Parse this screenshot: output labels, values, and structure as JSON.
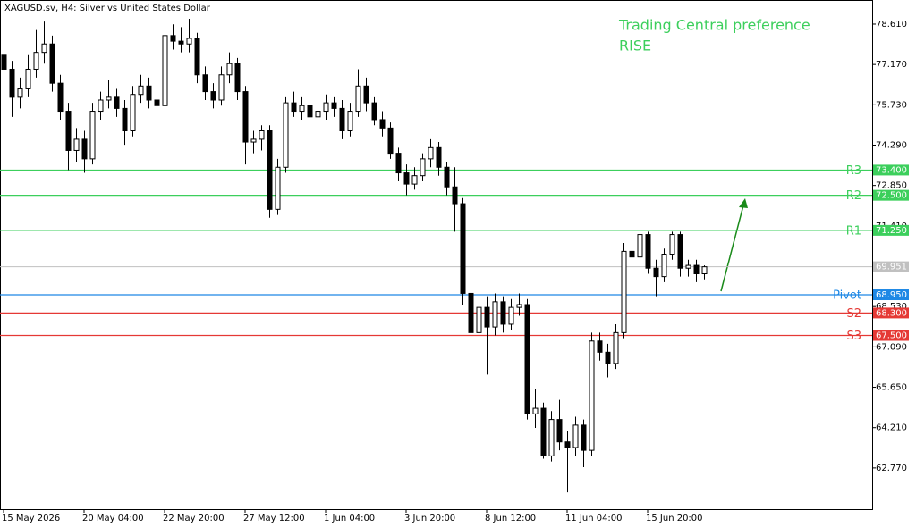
{
  "chart_data": {
    "type": "candlestick",
    "title": "XAGUSD.sv, H4:  Silver vs United States Dollar",
    "annotations": [
      "Trading Central preference",
      "RISE"
    ],
    "annotation_color": "#3ccf5c",
    "categories": [
      "15 May 2026",
      null,
      null,
      null,
      null,
      null,
      null,
      null,
      null,
      null,
      "20 May 04:00",
      null,
      null,
      null,
      null,
      null,
      null,
      null,
      null,
      null,
      "22 May 20:00",
      null,
      null,
      null,
      null,
      null,
      null,
      null,
      null,
      null,
      "27 May 12:00",
      null,
      null,
      null,
      null,
      null,
      null,
      null,
      null,
      null,
      "1 Jun 04:00",
      null,
      null,
      null,
      null,
      null,
      null,
      null,
      null,
      null,
      "3 Jun 20:00",
      null,
      null,
      null,
      null,
      null,
      null,
      null,
      null,
      null,
      "8 Jun 12:00",
      null,
      null,
      null,
      null,
      null,
      null,
      null,
      null,
      null,
      "11 Jun 04:00",
      null,
      null,
      null,
      null,
      null,
      null,
      null,
      null,
      null,
      "15 Jun 20:00",
      null,
      null,
      null,
      null,
      null,
      null,
      null
    ],
    "open": [
      77.5,
      77.0,
      76.0,
      76.3,
      77.0,
      77.6,
      77.9,
      76.5,
      75.5,
      74.1,
      74.5,
      73.8,
      75.5,
      75.9,
      76.0,
      75.6,
      74.8,
      76.1,
      76.4,
      75.9,
      75.7,
      78.2,
      78.0,
      77.9,
      78.1,
      76.8,
      76.2,
      75.9,
      76.8,
      77.2,
      76.2,
      74.4,
      74.5,
      74.8,
      72.0,
      73.5,
      75.8,
      75.5,
      75.7,
      75.3,
      75.5,
      75.8,
      75.6,
      74.8,
      75.5,
      76.4,
      75.8,
      75.2,
      74.9,
      74.0,
      73.3,
      72.9,
      73.2,
      73.8,
      74.2,
      73.5,
      72.8,
      72.2,
      69.0,
      67.6,
      68.5,
      67.8,
      68.7,
      67.9,
      68.5,
      68.6,
      64.7,
      64.9,
      63.2,
      64.5,
      63.7,
      63.5,
      64.3,
      63.4,
      67.3,
      66.9,
      66.5,
      67.6,
      70.5,
      70.3,
      71.1,
      69.9,
      69.6,
      70.4,
      71.1,
      69.9,
      70.0,
      69.7
    ],
    "high": [
      78.2,
      77.3,
      76.7,
      77.5,
      78.4,
      78.7,
      78.2,
      76.8,
      75.8,
      74.9,
      74.8,
      75.8,
      76.2,
      76.6,
      76.3,
      75.9,
      76.4,
      76.8,
      76.7,
      76.2,
      78.9,
      78.6,
      78.5,
      78.8,
      78.3,
      77.1,
      76.5,
      77.1,
      77.6,
      77.4,
      76.4,
      74.8,
      75.0,
      75.0,
      73.8,
      76.0,
      76.2,
      76.0,
      76.4,
      75.7,
      76.1,
      76.0,
      75.9,
      75.8,
      77.0,
      76.7,
      76.0,
      75.5,
      75.1,
      74.2,
      73.6,
      73.5,
      74.0,
      74.5,
      74.4,
      73.7,
      73.5,
      72.4,
      69.3,
      68.8,
      68.9,
      69.0,
      68.9,
      68.8,
      69.0,
      68.8,
      65.6,
      65.1,
      64.8,
      65.2,
      64.1,
      64.6,
      64.5,
      67.6,
      67.6,
      67.2,
      67.9,
      70.8,
      70.9,
      71.2,
      71.2,
      70.2,
      70.6,
      71.2,
      71.2,
      70.2,
      70.2,
      70.0
    ],
    "low": [
      76.8,
      75.3,
      75.6,
      76.0,
      76.7,
      77.2,
      76.2,
      75.2,
      73.4,
      73.7,
      73.3,
      73.6,
      75.2,
      75.6,
      75.3,
      74.3,
      74.6,
      75.8,
      75.6,
      75.4,
      75.5,
      77.7,
      77.6,
      77.6,
      76.5,
      75.9,
      75.6,
      75.7,
      76.5,
      75.9,
      73.6,
      74.0,
      74.1,
      71.7,
      71.8,
      73.3,
      75.3,
      75.2,
      75.0,
      73.5,
      75.2,
      75.3,
      74.5,
      74.6,
      75.3,
      75.5,
      75.0,
      74.6,
      73.8,
      73.0,
      72.5,
      72.7,
      73.0,
      73.5,
      73.2,
      72.5,
      71.2,
      68.6,
      67.0,
      66.5,
      66.1,
      67.5,
      67.6,
      67.7,
      68.2,
      64.5,
      64.2,
      63.1,
      63.0,
      63.4,
      61.9,
      63.2,
      62.8,
      63.2,
      66.6,
      66.0,
      66.3,
      67.4,
      69.9,
      70.0,
      69.7,
      68.9,
      69.4,
      70.2,
      69.6,
      69.6,
      69.4,
      69.5
    ],
    "close": [
      77.0,
      76.0,
      76.3,
      77.0,
      77.6,
      77.9,
      76.5,
      75.5,
      74.1,
      74.5,
      73.8,
      75.5,
      75.9,
      76.0,
      75.6,
      74.8,
      76.1,
      76.4,
      75.9,
      75.7,
      78.2,
      78.0,
      77.9,
      78.1,
      76.8,
      76.2,
      75.9,
      76.8,
      77.2,
      76.2,
      74.4,
      74.5,
      74.8,
      72.0,
      73.5,
      75.8,
      75.5,
      75.7,
      75.3,
      75.5,
      75.8,
      75.6,
      74.8,
      75.5,
      76.4,
      75.8,
      75.2,
      74.9,
      74.0,
      73.3,
      72.9,
      73.2,
      73.8,
      74.2,
      73.5,
      72.8,
      72.2,
      69.0,
      67.6,
      68.5,
      67.8,
      68.7,
      67.9,
      68.5,
      68.6,
      64.7,
      64.9,
      63.2,
      64.5,
      63.7,
      63.5,
      64.3,
      63.4,
      67.3,
      66.9,
      66.5,
      67.6,
      70.5,
      70.3,
      71.1,
      69.9,
      69.6,
      70.4,
      71.1,
      69.9,
      70.0,
      69.7,
      69.95
    ],
    "up_color": "#ffffff",
    "down_color": "#000000",
    "ylim": [
      61.3,
      79.47
    ],
    "yticks": [
      {
        "value": 78.61,
        "label": "78.610"
      },
      {
        "value": 77.17,
        "label": "77.170"
      },
      {
        "value": 75.73,
        "label": "75.730"
      },
      {
        "value": 74.29,
        "label": "74.290"
      },
      {
        "value": 72.85,
        "label": "72.850"
      },
      {
        "value": 71.41,
        "label": "71.410"
      },
      {
        "value": 68.53,
        "label": "68.530"
      },
      {
        "value": 67.09,
        "label": "67.090"
      },
      {
        "value": 65.65,
        "label": "65.650"
      },
      {
        "value": 64.21,
        "label": "64.210"
      },
      {
        "value": 62.77,
        "label": "62.770"
      }
    ],
    "levels": [
      {
        "name": "R3",
        "value": 73.4,
        "label": "73.400",
        "color": "#3ccf5c"
      },
      {
        "name": "R2",
        "value": 72.5,
        "label": "72.500",
        "color": "#3ccf5c"
      },
      {
        "name": "R1",
        "value": 71.25,
        "label": "71.250",
        "color": "#3ccf5c"
      },
      {
        "name": "Pivot",
        "value": 68.95,
        "label": "68.950",
        "color": "#1e88e5"
      },
      {
        "name": "S2",
        "value": 68.3,
        "label": "68.300",
        "color": "#e53935"
      },
      {
        "name": "S3",
        "value": 67.5,
        "label": "67.500",
        "color": "#e53935"
      }
    ],
    "last_price": {
      "value": 69.951,
      "label": "69.951",
      "color": "#c0c0c0"
    }
  }
}
